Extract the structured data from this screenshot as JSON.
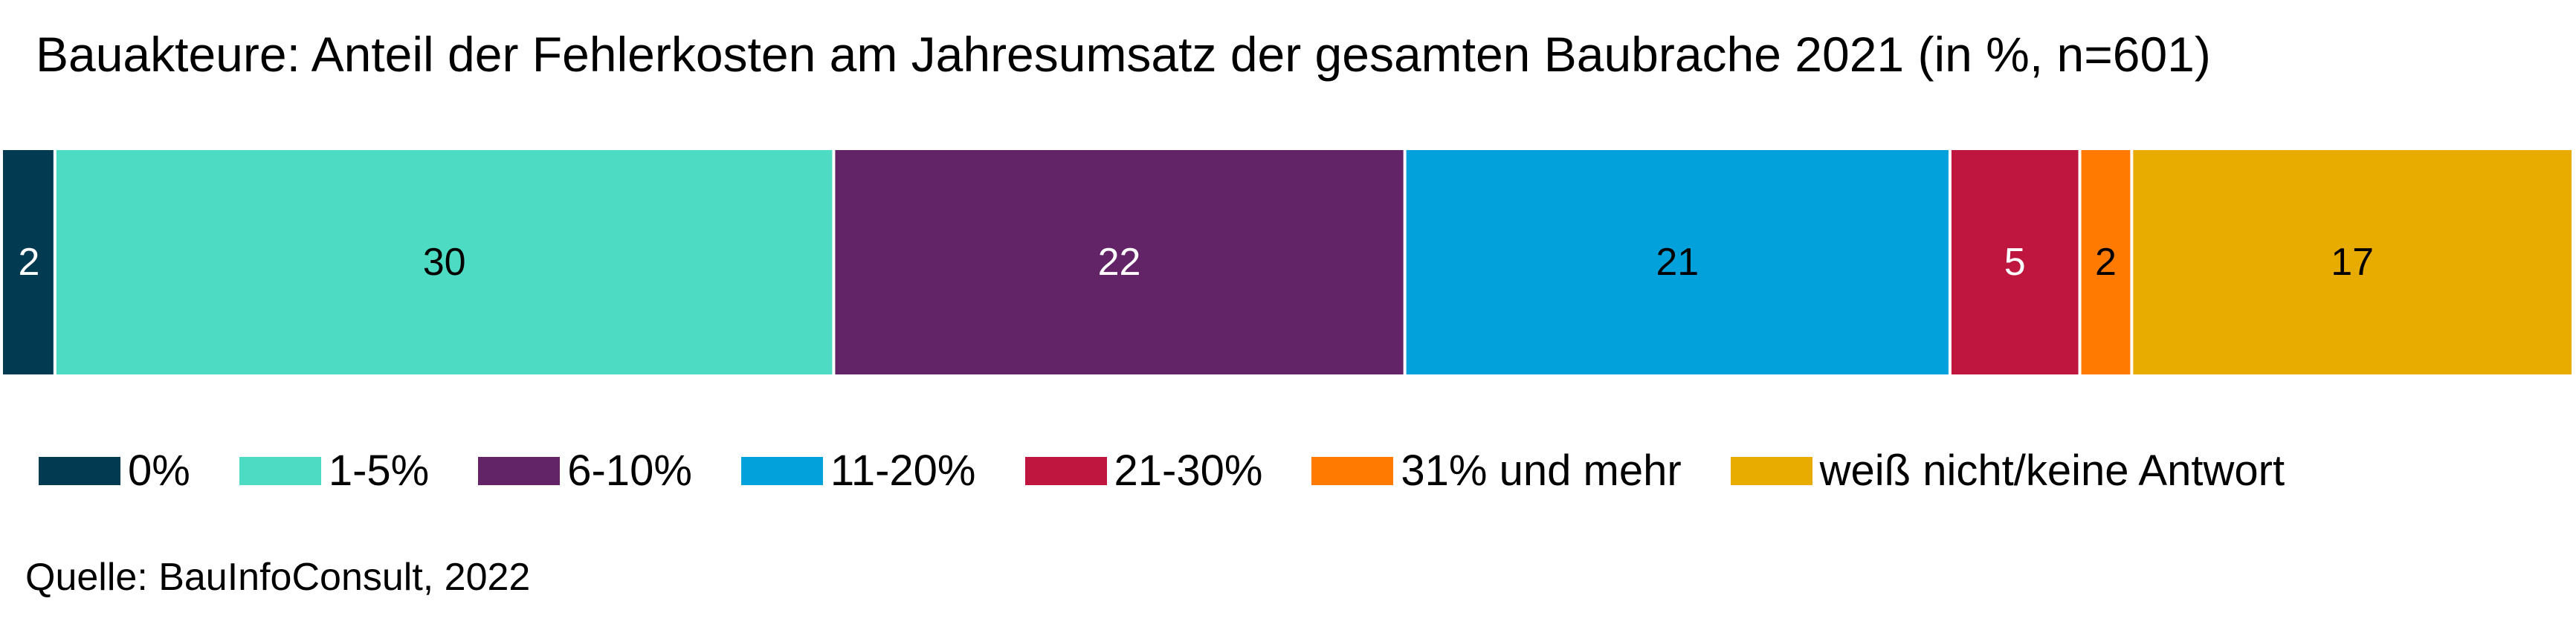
{
  "chart_data": {
    "type": "bar",
    "orientation": "horizontal-stacked-100",
    "title": "Bauakteure: Anteil der Fehlerkosten am Jahresumsatz der gesamten Baubrache 2021 (in %, n=601)",
    "source": "Quelle: BauInfoConsult, 2022",
    "legend_position": "bottom",
    "grid": false,
    "series": [
      {
        "name": "0%",
        "value": 2,
        "color": "#023a52",
        "label_color": "#ffffff"
      },
      {
        "name": "1-5%",
        "value": 30,
        "color": "#4ddbc3",
        "label_color": "#000000"
      },
      {
        "name": "6-10%",
        "value": 22,
        "color": "#622466",
        "label_color": "#ffffff"
      },
      {
        "name": "11-20%",
        "value": 21,
        "color": "#02a1dc",
        "label_color": "#000000"
      },
      {
        "name": "21-30%",
        "value": 5,
        "color": "#be163f",
        "label_color": "#ffffff"
      },
      {
        "name": "31% und mehr",
        "value": 2,
        "color": "#ff7a00",
        "label_color": "#000000"
      },
      {
        "name": "weiß nicht/keine Antwort",
        "value": 17,
        "color": "#e8ab00",
        "label_color": "#000000"
      }
    ]
  }
}
